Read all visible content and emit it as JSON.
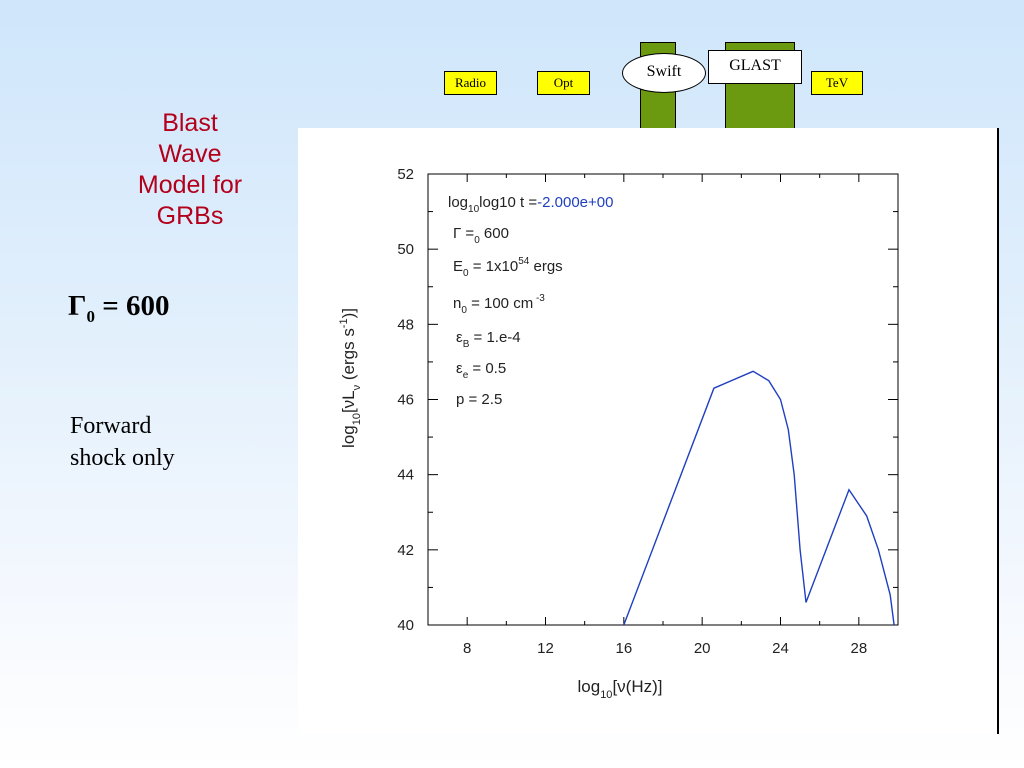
{
  "title_lines": [
    "Blast",
    "Wave",
    "Model for",
    "GRBs"
  ],
  "gamma": {
    "symbol": "Γ",
    "sub": "0",
    "value": "= 600"
  },
  "forward_lines": [
    "Forward",
    "shock only"
  ],
  "bands": {
    "radio": "Radio",
    "opt": "Opt",
    "swift": "Swift",
    "glast": "GLAST",
    "tev": "TeV"
  },
  "colors": {
    "band_fill": "#ffff00",
    "bar_fill": "#6b9a10",
    "title": "#b3001b",
    "curve": "#1f3fbf"
  },
  "chart_data": {
    "type": "line",
    "xlabel": "log10[ν(Hz)]",
    "ylabel": "log10[νLν (ergs s-1)]",
    "xlim": [
      6,
      30
    ],
    "ylim": [
      40,
      52
    ],
    "xticks": [
      8,
      12,
      16,
      20,
      24,
      28
    ],
    "yticks": [
      40,
      42,
      44,
      46,
      48,
      50,
      52
    ],
    "params": {
      "time": {
        "label": "log10 t =",
        "value": "-2.000e+00"
      },
      "lines": [
        "Γ =0 600",
        "E0 = 1x10^54 ergs",
        "n0 = 100 cm^-3",
        "εB = 1.e-4",
        "εe = 0.5",
        "p = 2.5"
      ]
    },
    "series": [
      {
        "x": [
          16.0,
          20.6,
          22.6,
          23.4,
          24.0,
          24.4,
          24.7,
          25.0,
          25.3,
          27.5,
          28.4,
          29.0,
          29.6,
          29.8
        ],
        "y": [
          40.0,
          46.3,
          46.75,
          46.5,
          46.0,
          45.2,
          44.0,
          42.0,
          40.6,
          43.6,
          42.9,
          42.0,
          40.8,
          40.0
        ]
      }
    ]
  }
}
